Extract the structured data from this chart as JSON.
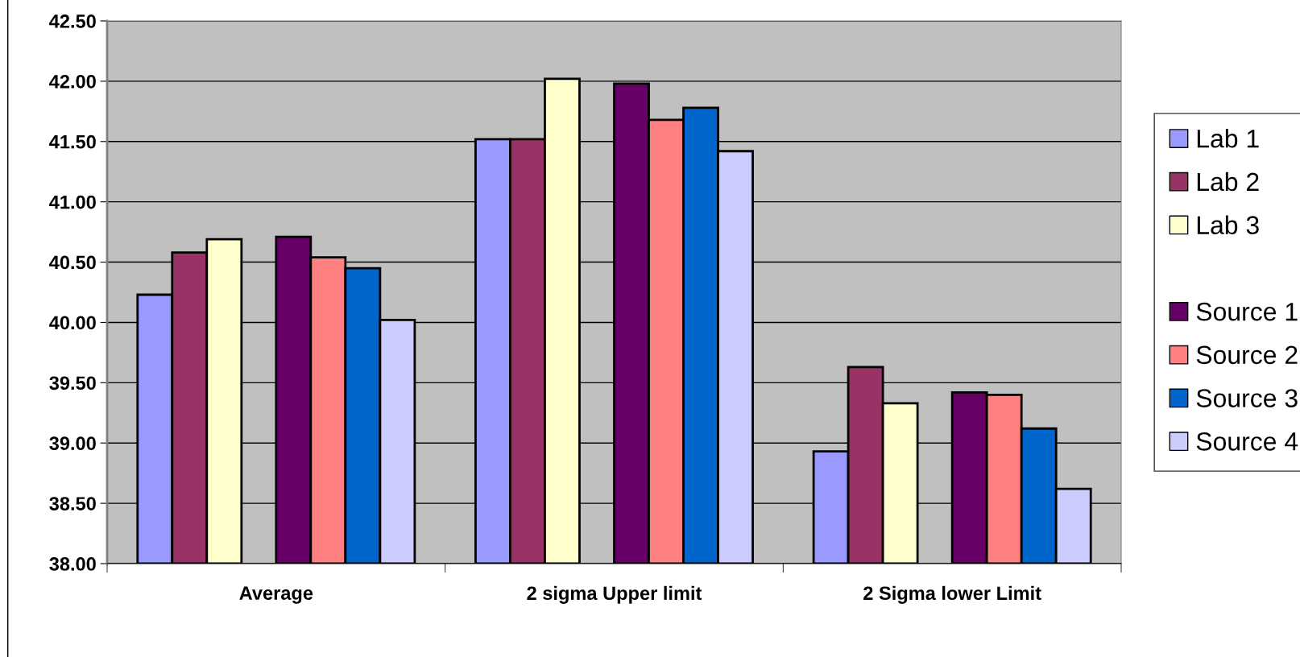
{
  "chart_data": {
    "type": "bar",
    "categories": [
      "Average",
      "2 sigma Upper limit",
      "2 Sigma lower Limit"
    ],
    "series": [
      {
        "name": "Lab 1",
        "color": "#9999ff",
        "values": [
          40.23,
          41.52,
          38.93
        ]
      },
      {
        "name": "Lab 2",
        "color": "#993366",
        "values": [
          40.58,
          41.52,
          39.63
        ]
      },
      {
        "name": "Lab 3",
        "color": "#ffffcc",
        "values": [
          40.69,
          42.02,
          39.33
        ]
      },
      {
        "values": [
          null,
          null,
          null
        ]
      },
      {
        "name": "Source 1",
        "color": "#660066",
        "values": [
          40.71,
          41.98,
          39.42
        ]
      },
      {
        "name": "Source 2",
        "color": "#ff8080",
        "values": [
          40.54,
          41.68,
          39.4
        ]
      },
      {
        "name": "Source 3",
        "color": "#0066cc",
        "values": [
          40.45,
          41.78,
          39.12
        ]
      },
      {
        "name": "Source 4",
        "color": "#ccccff",
        "values": [
          40.02,
          41.42,
          38.62
        ]
      }
    ],
    "ylim": [
      38,
      42.5
    ],
    "yticks": [
      {
        "value": 38,
        "label": "38.00"
      },
      {
        "value": 38.5,
        "label": "38.50"
      },
      {
        "value": 39,
        "label": "39.00"
      },
      {
        "value": 39.5,
        "label": "39.50"
      },
      {
        "value": 40,
        "label": "40.00"
      },
      {
        "value": 40.5,
        "label": "40.50"
      },
      {
        "value": 41,
        "label": "41.00"
      },
      {
        "value": 41.5,
        "label": "41.50"
      },
      {
        "value": 42,
        "label": "42.00"
      },
      {
        "value": 42.5,
        "label": "42.50"
      }
    ],
    "grid": "y",
    "legend": "right"
  }
}
